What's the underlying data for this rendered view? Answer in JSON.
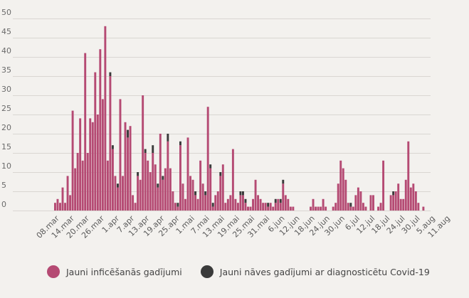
{
  "colors": {
    "infections": "#b54a73",
    "deaths": "#3a3a3a"
  },
  "legend": {
    "infections": "Jauni inficēšanās gadījumi",
    "deaths": "Jauni nāves gadījumi ar diagnosticētu Covid-19"
  },
  "chart_data": {
    "type": "bar",
    "stacked": true,
    "start_date": "2020-03-08",
    "ylim": [
      0,
      50
    ],
    "yticks": [
      0,
      5,
      10,
      15,
      20,
      25,
      30,
      35,
      40,
      45,
      50
    ],
    "grid": true,
    "legend_position": "bottom-left",
    "xtick_labels": [
      "08.mar",
      "14.mar",
      "20.mar",
      "26.mar",
      "1.apr",
      "7.apr",
      "13.apr",
      "19.apr",
      "25.apr",
      "1.mai",
      "7.mai",
      "13.mai",
      "19.mai",
      "25.mai",
      "31.mai",
      "6.jun",
      "12.jun",
      "18.jun",
      "24.jun",
      "30.jun",
      "6.jul",
      "12.jul",
      "18.jul",
      "24.jul",
      "30.jul",
      "5.aug",
      "11.aug"
    ],
    "series": [
      {
        "name": "Jauni inficēšanās gadījumi",
        "values": [
          2,
          3,
          2,
          6,
          2,
          9,
          4,
          26,
          11,
          15,
          24,
          13,
          41,
          15,
          24,
          23,
          36,
          25,
          42,
          29,
          48,
          13,
          35,
          16,
          9,
          6,
          29,
          9,
          23,
          19,
          22,
          4,
          2,
          9,
          8,
          30,
          15,
          13,
          10,
          15,
          12,
          6,
          20,
          8,
          11,
          18,
          11,
          5,
          2,
          1,
          17,
          7,
          3,
          19,
          9,
          8,
          4,
          3,
          13,
          7,
          4,
          27,
          11,
          1,
          4,
          5,
          9,
          12,
          2,
          3,
          4,
          16,
          3,
          2,
          4,
          4,
          2,
          1,
          1,
          3,
          8,
          4,
          3,
          2,
          2,
          1,
          2,
          1,
          2,
          3,
          2,
          7,
          4,
          3,
          1,
          1,
          0,
          0,
          0,
          0,
          0,
          0,
          1,
          3,
          1,
          1,
          1,
          3,
          1,
          0,
          0,
          1,
          2,
          7,
          13,
          11,
          8,
          2,
          1,
          1,
          4,
          6,
          5,
          2,
          1,
          0,
          4,
          4,
          0,
          1,
          2,
          13,
          0,
          0,
          4,
          4,
          5,
          7,
          3,
          3,
          8,
          18,
          6,
          7,
          5,
          2,
          0,
          1
        ]
      },
      {
        "name": "Jauni nāves gadījumi ar diagnosticētu Covid-19",
        "values": [
          0,
          0,
          0,
          0,
          0,
          0,
          0,
          0,
          0,
          0,
          0,
          0,
          0,
          0,
          0,
          0,
          0,
          0,
          0,
          0,
          0,
          0,
          1,
          1,
          0,
          1,
          0,
          0,
          0,
          2,
          0,
          0,
          0,
          1,
          0,
          0,
          1,
          0,
          0,
          2,
          0,
          1,
          0,
          1,
          0,
          2,
          0,
          0,
          0,
          1,
          1,
          0,
          0,
          0,
          0,
          0,
          1,
          0,
          0,
          0,
          1,
          0,
          1,
          1,
          0,
          0,
          1,
          0,
          0,
          0,
          0,
          0,
          0,
          0,
          1,
          1,
          1,
          0,
          0,
          0,
          0,
          0,
          0,
          0,
          0,
          1,
          0,
          0,
          1,
          0,
          1,
          1,
          0,
          0,
          0,
          0,
          0,
          0,
          0,
          0,
          0,
          0,
          0,
          0,
          0,
          0,
          0,
          0,
          0,
          0,
          0,
          0,
          0,
          0,
          0,
          0,
          0,
          0,
          1,
          0,
          0,
          0,
          0,
          0,
          0,
          0,
          0,
          0,
          0,
          0,
          0,
          0,
          0,
          0,
          0,
          1,
          0,
          0,
          0,
          0,
          0,
          0,
          0,
          0,
          0,
          0,
          0,
          0
        ]
      }
    ]
  }
}
